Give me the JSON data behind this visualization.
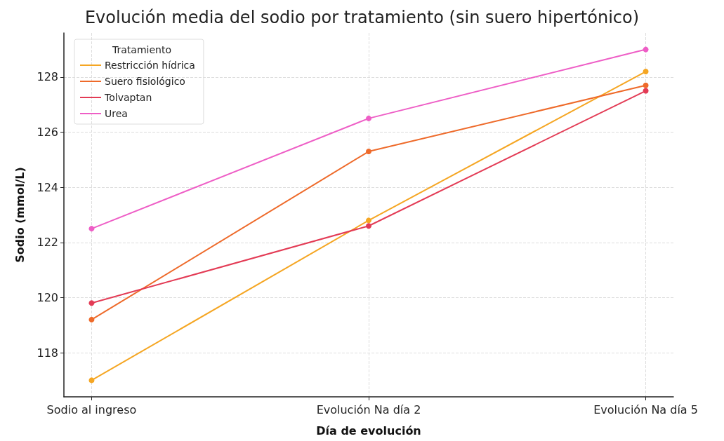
{
  "chart_data": {
    "type": "line",
    "title": "Evolución media del sodio por tratamiento (sin suero hipertónico)",
    "xlabel": "Día de evolución",
    "ylabel": "Sodio (mmol/L)",
    "legend_title": "Tratamiento",
    "categories": [
      "Sodio al ingreso",
      "Evolución Na día 2",
      "Evolución Na día 5"
    ],
    "series": [
      {
        "name": "Restricción hídrica",
        "color": "#f5a623",
        "values": [
          117.0,
          122.8,
          128.2
        ]
      },
      {
        "name": "Suero fisiológico",
        "color": "#ee6a2a",
        "values": [
          119.2,
          125.3,
          127.7
        ]
      },
      {
        "name": "Tolvaptan",
        "color": "#e33b55",
        "values": [
          119.8,
          122.6,
          127.5
        ]
      },
      {
        "name": "Urea",
        "color": "#ee5ec6",
        "values": [
          122.5,
          126.5,
          129.0
        ]
      }
    ],
    "ylim": [
      116.4,
      129.6
    ],
    "yticks": [
      118,
      120,
      122,
      124,
      126,
      128
    ],
    "grid": true,
    "legend": "top left",
    "marker": "circle",
    "line_style": "solid"
  }
}
